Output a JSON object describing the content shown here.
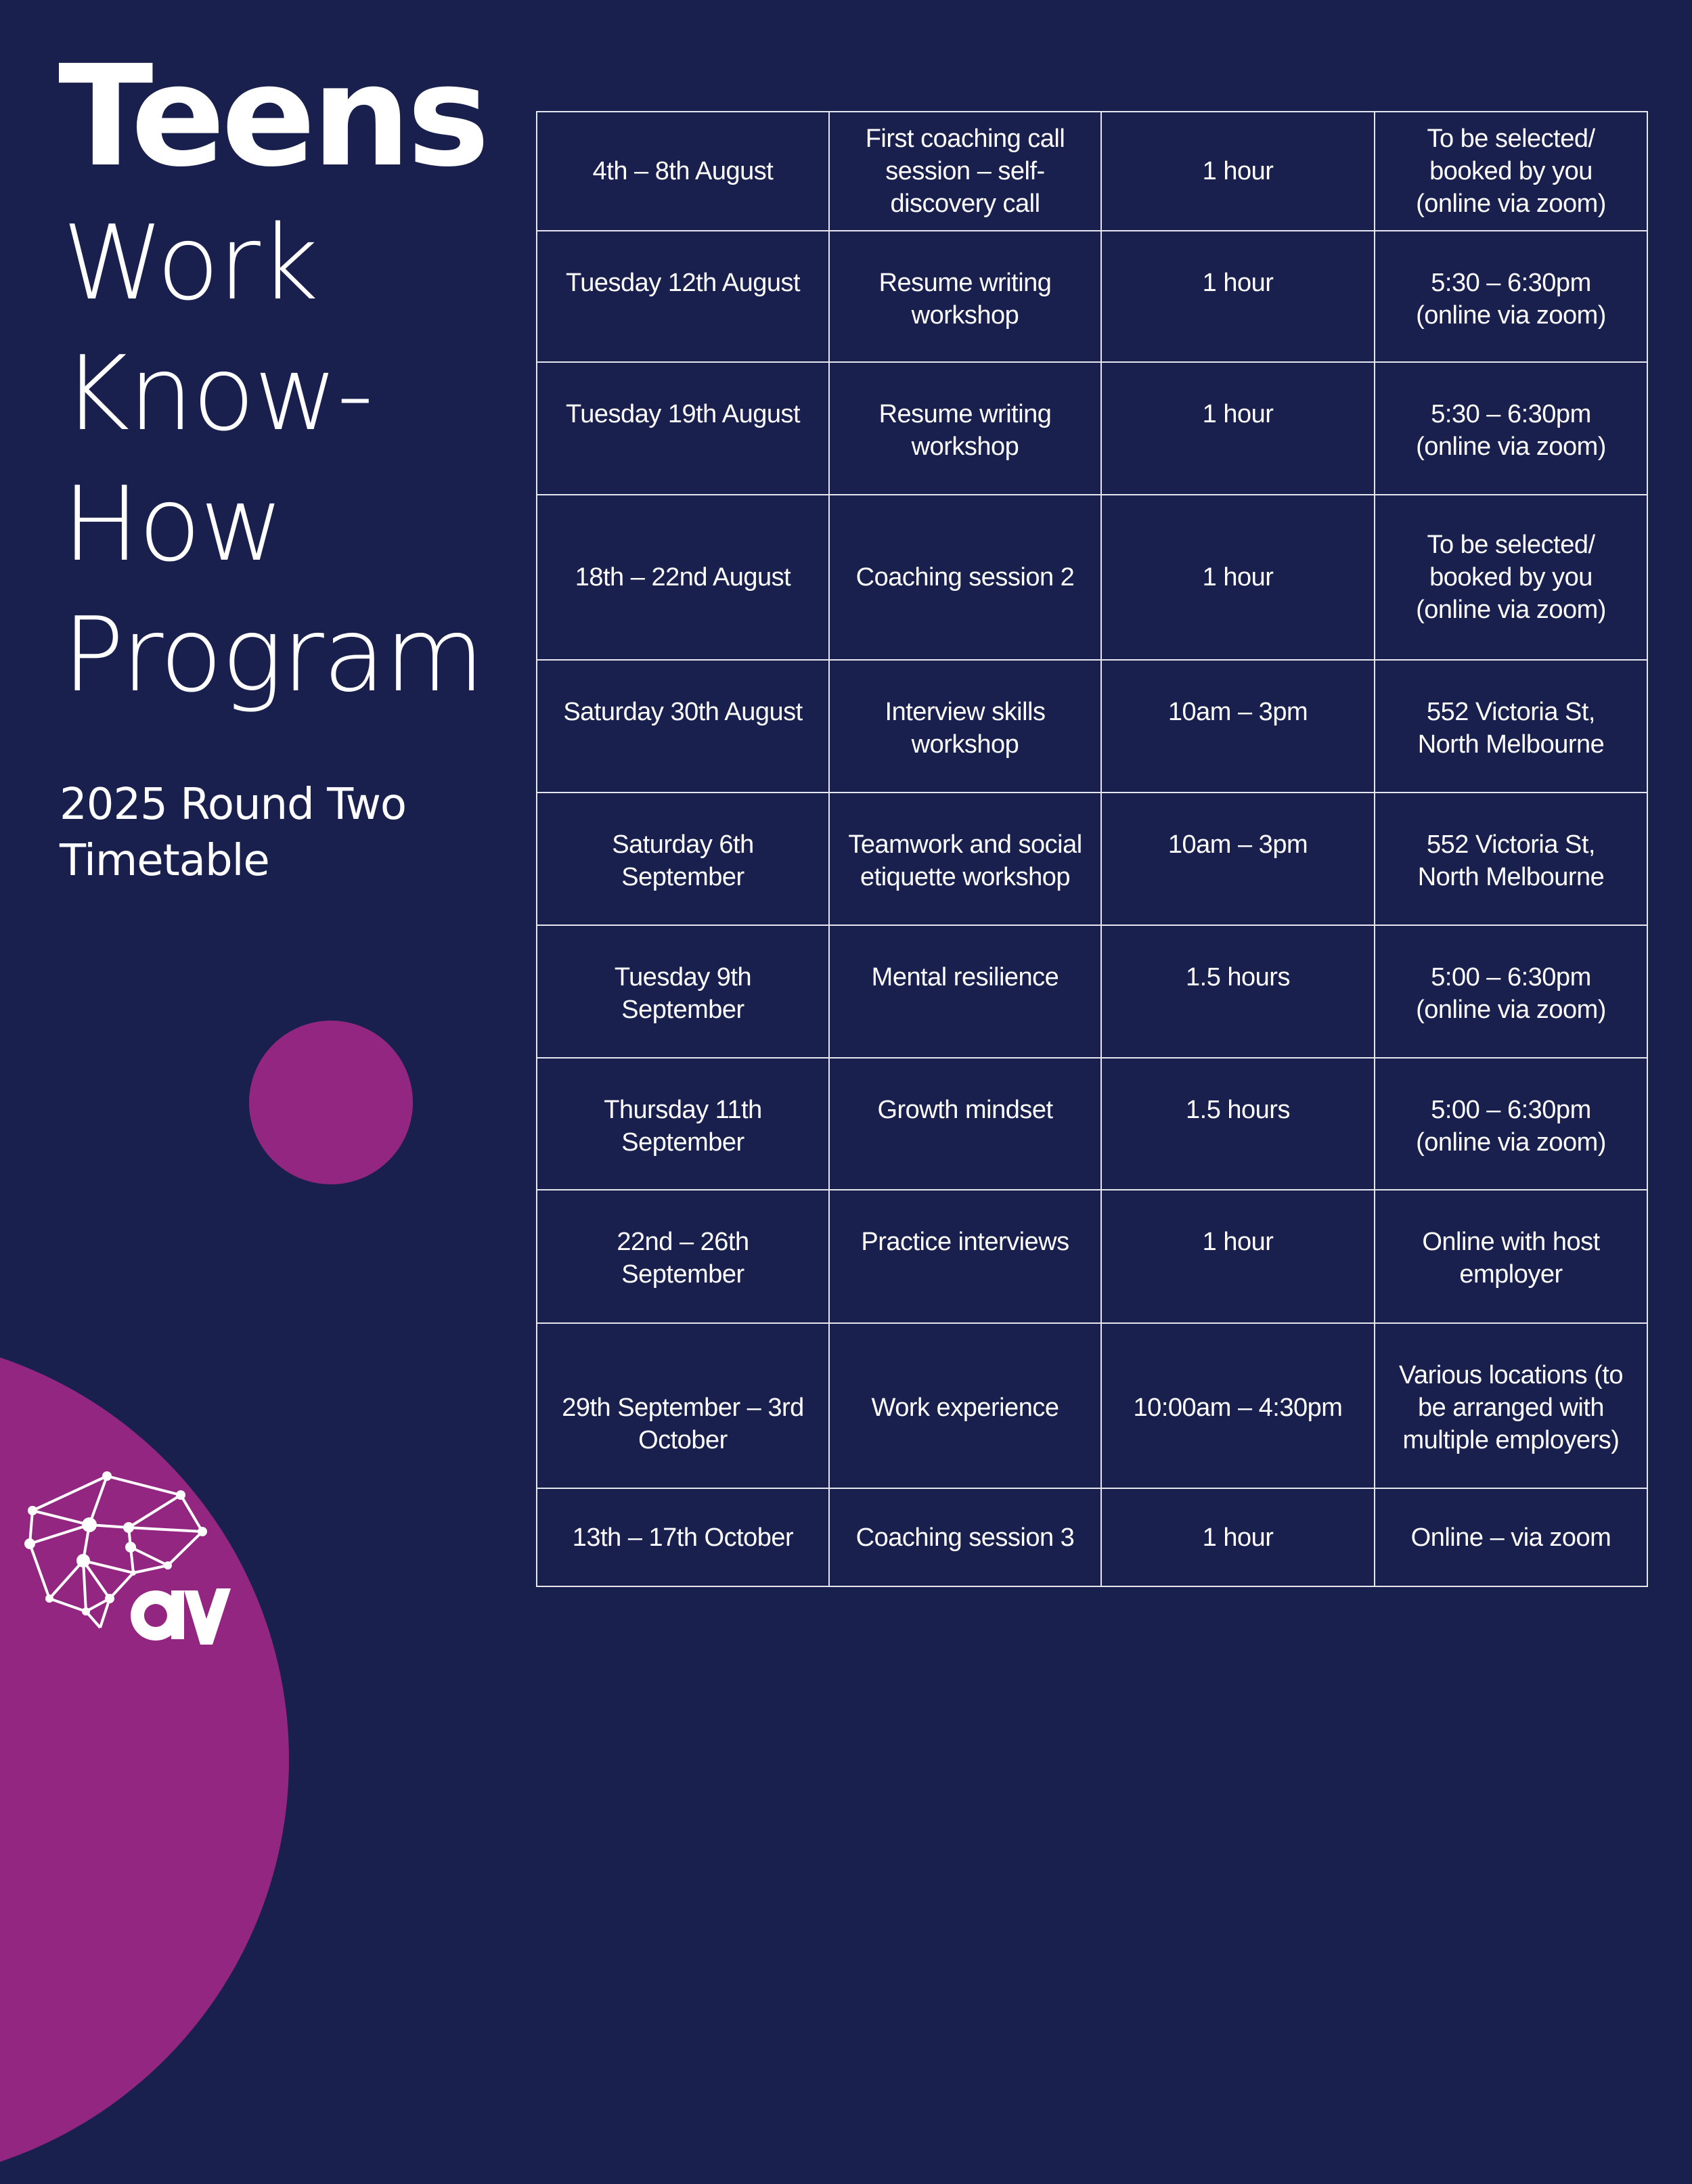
{
  "header": {
    "title_bold": "Teens",
    "title_lines": [
      "Work",
      "Know-",
      "How",
      "Program"
    ],
    "subtitle_lines": [
      "2025 Round Two",
      "Timetable"
    ]
  },
  "colors": {
    "background": "#19204d",
    "accent_purple": "#932681",
    "text": "#ffffff",
    "table_border": "#e6e7ee"
  },
  "logo": {
    "icon": "brain-network-icon",
    "wordmark": "av"
  },
  "timetable": {
    "rows": [
      {
        "date": [
          "4th – 8th August"
        ],
        "activity": [
          "First coaching call",
          "session – self-",
          "discovery call"
        ],
        "duration": [
          "1 hour"
        ],
        "location": [
          "To be selected/",
          "booked by you",
          "(online via zoom)"
        ]
      },
      {
        "date": [
          "Tuesday 12th August"
        ],
        "activity": [
          "Resume writing",
          "workshop"
        ],
        "duration": [
          "1 hour"
        ],
        "location": [
          "5:30 – 6:30pm",
          "(online via zoom)"
        ]
      },
      {
        "date": [
          "Tuesday 19th August"
        ],
        "activity": [
          "Resume writing",
          "workshop"
        ],
        "duration": [
          "1 hour"
        ],
        "location": [
          "5:30 – 6:30pm",
          "(online via zoom)"
        ]
      },
      {
        "date": [
          "18th – 22nd August"
        ],
        "activity": [
          "Coaching session 2"
        ],
        "duration": [
          "1 hour"
        ],
        "location": [
          "To be selected/",
          "booked by you",
          "(online via zoom)"
        ]
      },
      {
        "date": [
          "Saturday 30th August"
        ],
        "activity": [
          "Interview skills",
          "workshop"
        ],
        "duration": [
          "10am – 3pm"
        ],
        "location": [
          "552 Victoria St,",
          "North Melbourne"
        ]
      },
      {
        "date": [
          "Saturday 6th",
          "September"
        ],
        "activity": [
          "Teamwork and social",
          "etiquette workshop"
        ],
        "duration": [
          "10am – 3pm"
        ],
        "location": [
          "552 Victoria St,",
          "North Melbourne"
        ]
      },
      {
        "date": [
          "Tuesday 9th",
          "September"
        ],
        "activity": [
          "Mental resilience"
        ],
        "duration": [
          "1.5 hours"
        ],
        "location": [
          "5:00 – 6:30pm",
          "(online via zoom)"
        ]
      },
      {
        "date": [
          "Thursday 11th",
          "September"
        ],
        "activity": [
          "Growth mindset"
        ],
        "duration": [
          "1.5 hours"
        ],
        "location": [
          "5:00 – 6:30pm",
          "(online via zoom)"
        ]
      },
      {
        "date": [
          "22nd – 26th",
          "September"
        ],
        "activity": [
          "Practice interviews"
        ],
        "duration": [
          "1 hour"
        ],
        "location": [
          "Online with host",
          "employer"
        ]
      },
      {
        "date": [
          "29th September – 3rd",
          "October"
        ],
        "activity": [
          "Work experience"
        ],
        "duration": [
          "10:00am – 4:30pm"
        ],
        "location": [
          "Various locations (to",
          "be arranged with",
          "multiple employers)"
        ]
      },
      {
        "date": [
          "13th – 17th October"
        ],
        "activity": [
          "Coaching session 3"
        ],
        "duration": [
          "1 hour"
        ],
        "location": [
          "Online – via zoom"
        ]
      }
    ]
  }
}
